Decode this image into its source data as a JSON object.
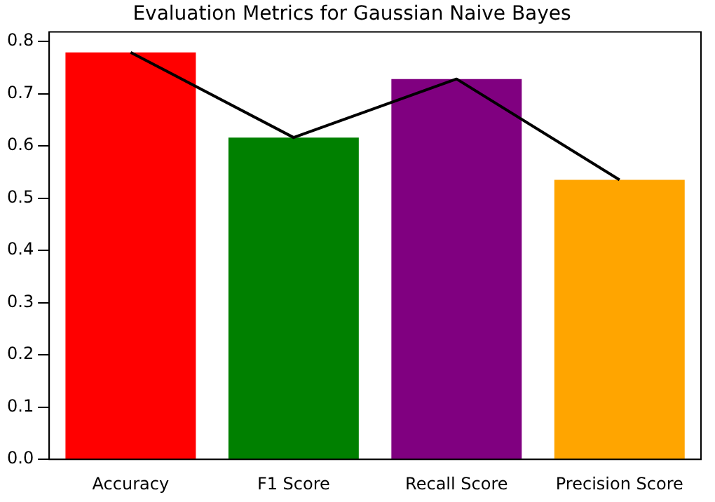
{
  "chart_data": {
    "type": "bar",
    "title": "Evaluation Metrics for Gaussian Naive Bayes",
    "categories": [
      "Accuracy",
      "F1 Score",
      "Recall Score",
      "Precision Score"
    ],
    "series": [
      {
        "colors": [
          "#ff0000",
          "#008000",
          "#800080",
          "#ffa500"
        ],
        "values": [
          0.779,
          0.616,
          0.728,
          0.535
        ]
      },
      {
        "type": "line",
        "color": "#000000",
        "values": [
          0.779,
          0.616,
          0.728,
          0.535
        ],
        "marker": "none"
      }
    ],
    "ylim": [
      0,
      0.818
    ],
    "yticks": [
      {
        "value": 0,
        "label": "0.0"
      },
      {
        "value": 0.1,
        "label": "0.1"
      },
      {
        "value": 0.2,
        "label": "0.2"
      },
      {
        "value": 0.3,
        "label": "0.3"
      },
      {
        "value": 0.4,
        "label": "0.4"
      },
      {
        "value": 0.5,
        "label": "0.5"
      },
      {
        "value": 0.6,
        "label": "0.6"
      },
      {
        "value": 0.7,
        "label": "0.7"
      },
      {
        "value": 0.8,
        "label": "0.8"
      }
    ],
    "grid": false,
    "legend": false
  }
}
